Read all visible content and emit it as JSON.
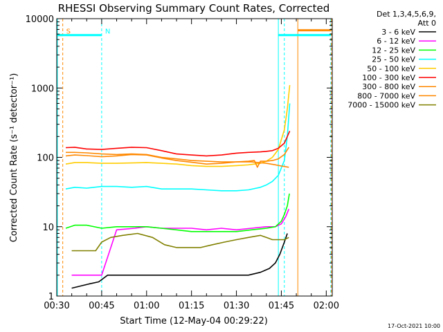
{
  "chart_data": {
    "type": "line",
    "title": "RHESSI Observing Summary Count Rates, Corrected",
    "xlabel": "Start Time (12-May-04 00:29:22)",
    "ylabel": "Corrected Count Rate (s⁻¹ detector⁻¹)",
    "x_unit": "minutes since 00:00",
    "xlim": [
      30,
      122
    ],
    "ylim": [
      1,
      10000
    ],
    "yscale": "log",
    "x_ticks": [
      {
        "value": 30,
        "label": "00:30"
      },
      {
        "value": 45,
        "label": "00:45"
      },
      {
        "value": 60,
        "label": "01:00"
      },
      {
        "value": 75,
        "label": "01:15"
      },
      {
        "value": 90,
        "label": "01:30"
      },
      {
        "value": 105,
        "label": "01:45"
      },
      {
        "value": 120,
        "label": "02:00"
      }
    ],
    "y_ticks": [
      {
        "value": 1,
        "label": "1"
      },
      {
        "value": 10,
        "label": "10"
      },
      {
        "value": 100,
        "label": "100"
      },
      {
        "value": 1000,
        "label": "1000"
      },
      {
        "value": 10000,
        "label": "10000"
      }
    ],
    "grid": false,
    "legend": {
      "placement": "right",
      "header": [
        "Det 1,3,4,5,6,9,",
        "Att 0"
      ]
    },
    "series": [
      {
        "name": "3 - 6 keV",
        "color": "#000000",
        "x": [
          35,
          41,
          44,
          47,
          52,
          58,
          62,
          66,
          70,
          74,
          78,
          82,
          86,
          90,
          94,
          98,
          101,
          103,
          104.5,
          106,
          107
        ],
        "y": [
          1.3,
          1.5,
          1.6,
          2.0,
          2.0,
          2.0,
          2.0,
          2.0,
          2.0,
          2.0,
          2.0,
          2.0,
          2.0,
          2.0,
          2.0,
          2.2,
          2.5,
          3.0,
          4.0,
          6.0,
          8.0
        ]
      },
      {
        "name": "6 - 12 keV",
        "color": "#ff00ff",
        "x": [
          35,
          40,
          45,
          50,
          56,
          60,
          65,
          70,
          75,
          80,
          85,
          90,
          95,
          100,
          103,
          105,
          106.5,
          107.5
        ],
        "y": [
          2.0,
          2.0,
          2.0,
          9.0,
          9.5,
          10.0,
          9.5,
          9.5,
          9.5,
          9.0,
          9.5,
          9.0,
          9.5,
          10.0,
          10.0,
          11.0,
          14.0,
          18.0
        ]
      },
      {
        "name": "12 - 25 keV",
        "color": "#00ff00",
        "x": [
          33,
          36,
          40,
          45,
          50,
          55,
          60,
          65,
          70,
          75,
          80,
          85,
          90,
          95,
          100,
          103,
          105,
          106,
          107,
          107.7
        ],
        "y": [
          9.5,
          10.5,
          10.5,
          9.5,
          10.0,
          10.0,
          10.0,
          9.5,
          9.0,
          8.5,
          8.5,
          8.5,
          8.5,
          9.0,
          9.5,
          10.0,
          12.0,
          15.0,
          20.0,
          30.0
        ]
      },
      {
        "name": "25 - 50 keV",
        "color": "#00ffff",
        "x": [
          33,
          36,
          40,
          45,
          50,
          55,
          60,
          65,
          70,
          75,
          80,
          85,
          90,
          94,
          98,
          100,
          102,
          104,
          106,
          107,
          107.8
        ],
        "y": [
          35,
          37,
          36,
          38,
          38,
          37,
          38,
          35,
          35,
          35,
          34,
          33,
          33,
          34,
          37,
          40,
          45,
          55,
          90,
          200,
          600
        ]
      },
      {
        "name": "50 - 100 keV",
        "color": "#ffcc00",
        "x": [
          33,
          36,
          40,
          45,
          50,
          55,
          60,
          65,
          70,
          75,
          80,
          85,
          90,
          94,
          98,
          100,
          102,
          104,
          106,
          107,
          107.8
        ],
        "y": [
          80,
          84,
          84,
          82,
          82,
          83,
          84,
          82,
          80,
          76,
          74,
          74,
          76,
          78,
          82,
          88,
          100,
          130,
          250,
          500,
          1100
        ]
      },
      {
        "name": "100 - 300 keV",
        "color": "#ff0000",
        "x": [
          33,
          36,
          40,
          45,
          50,
          55,
          60,
          65,
          70,
          75,
          80,
          85,
          90,
          94,
          98,
          100,
          102,
          104,
          106,
          107,
          107.8
        ],
        "y": [
          138,
          140,
          132,
          130,
          135,
          140,
          138,
          125,
          112,
          108,
          105,
          108,
          115,
          118,
          120,
          122,
          125,
          135,
          160,
          200,
          240
        ]
      },
      {
        "name": "300 - 800 keV",
        "color": "#ff8800",
        "x": [
          33,
          36,
          40,
          45,
          50,
          55,
          60,
          65,
          70,
          75,
          80,
          85,
          90,
          94,
          96,
          97,
          98,
          100,
          102,
          104,
          106,
          107.5
        ],
        "y": [
          105,
          108,
          106,
          102,
          105,
          110,
          108,
          98,
          90,
          85,
          80,
          82,
          86,
          88,
          90,
          72,
          88,
          88,
          90,
          95,
          110,
          140
        ]
      },
      {
        "name": "800 - 7000 keV",
        "color": "#ff8800",
        "x": [
          33,
          36,
          40,
          45,
          50,
          55,
          60,
          65,
          70,
          75,
          80,
          85,
          90,
          95,
          100,
          103,
          105,
          107.5
        ],
        "y": [
          118,
          118,
          116,
          112,
          110,
          112,
          110,
          100,
          95,
          90,
          88,
          86,
          86,
          86,
          82,
          78,
          75,
          72
        ]
      },
      {
        "name": "7000 - 15000 keV",
        "color": "#808000",
        "x": [
          35,
          40,
          43,
          45,
          48,
          52,
          57,
          62,
          66,
          70,
          74,
          78,
          82,
          86,
          90,
          94,
          98,
          100,
          102,
          104,
          106,
          107.5
        ],
        "y": [
          4.5,
          4.5,
          4.5,
          6.0,
          7.0,
          7.5,
          8.0,
          7.0,
          5.5,
          5.0,
          5.0,
          5.0,
          5.5,
          6.0,
          6.5,
          7.0,
          7.5,
          7.0,
          6.5,
          6.5,
          6.5,
          7.0
        ]
      }
    ],
    "flag_bars": [
      {
        "label": "S",
        "color": "#ff8800",
        "x0": 30,
        "x1": 32,
        "y": 5800
      },
      {
        "label": "N",
        "color": "#00ffff",
        "x0": 30,
        "x1": 45,
        "y": 5800
      },
      {
        "label": "",
        "color": "#00ffff",
        "x0": 104,
        "x1": 121.5,
        "y": 5800
      },
      {
        "label": "",
        "color": "#ff8800",
        "x0": 110.5,
        "x1": 121.5,
        "y": 6800
      }
    ],
    "vertical_markers": [
      {
        "x": 30.2,
        "color": "#00ffff",
        "dashed": false
      },
      {
        "x": 32,
        "color": "#ff8800",
        "dashed": true
      },
      {
        "x": 45,
        "color": "#00ffff",
        "dashed": true
      },
      {
        "x": 104,
        "color": "#00ffff",
        "dashed": false
      },
      {
        "x": 106,
        "color": "#00ffff",
        "dashed": true
      },
      {
        "x": 110.5,
        "color": "#ff8800",
        "dashed": false
      },
      {
        "x": 121.5,
        "color": "#00ffff",
        "dashed": true
      },
      {
        "x": 121.7,
        "color": "#ff8800",
        "dashed": true
      }
    ],
    "footer": "17-Oct-2021 10:00"
  }
}
